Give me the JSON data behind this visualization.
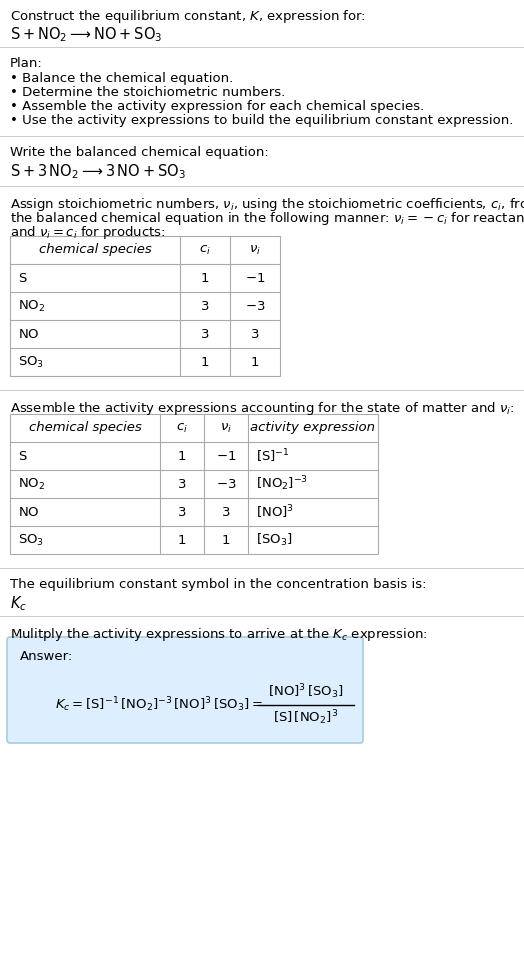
{
  "title_line1": "Construct the equilibrium constant, $K$, expression for:",
  "title_line2": "$\\mathrm{S} + \\mathrm{NO}_2 \\longrightarrow \\mathrm{NO} + \\mathrm{SO}_3$",
  "plan_header": "Plan:",
  "plan_items": [
    "• Balance the chemical equation.",
    "• Determine the stoichiometric numbers.",
    "• Assemble the activity expression for each chemical species.",
    "• Use the activity expressions to build the equilibrium constant expression."
  ],
  "balanced_header": "Write the balanced chemical equation:",
  "balanced_eq": "$\\mathrm{S} + 3\\,\\mathrm{NO}_2 \\longrightarrow 3\\,\\mathrm{NO} + \\mathrm{SO}_3$",
  "stoich_text1": "Assign stoichiometric numbers, $\\nu_i$, using the stoichiometric coefficients, $c_i$, from",
  "stoich_text2": "the balanced chemical equation in the following manner: $\\nu_i = -c_i$ for reactants",
  "stoich_text3": "and $\\nu_i = c_i$ for products:",
  "table1_headers": [
    "chemical species",
    "$c_i$",
    "$\\nu_i$"
  ],
  "table1_rows": [
    [
      "$\\mathrm{S}$",
      "1",
      "$-1$"
    ],
    [
      "$\\mathrm{NO}_2$",
      "3",
      "$-3$"
    ],
    [
      "$\\mathrm{NO}$",
      "3",
      "$3$"
    ],
    [
      "$\\mathrm{SO}_3$",
      "1",
      "$1$"
    ]
  ],
  "assemble_header": "Assemble the activity expressions accounting for the state of matter and $\\nu_i$:",
  "table2_headers": [
    "chemical species",
    "$c_i$",
    "$\\nu_i$",
    "activity expression"
  ],
  "table2_rows": [
    [
      "$\\mathrm{S}$",
      "1",
      "$-1$",
      "$[\\mathrm{S}]^{-1}$"
    ],
    [
      "$\\mathrm{NO}_2$",
      "3",
      "$-3$",
      "$[\\mathrm{NO}_2]^{-3}$"
    ],
    [
      "$\\mathrm{NO}$",
      "3",
      "$3$",
      "$[\\mathrm{NO}]^{3}$"
    ],
    [
      "$\\mathrm{SO}_3$",
      "1",
      "$1$",
      "$[\\mathrm{SO}_3]$"
    ]
  ],
  "kc_text": "The equilibrium constant symbol in the concentration basis is:",
  "kc_symbol": "$K_c$",
  "multiply_text": "Mulitply the activity expressions to arrive at the $K_c$ expression:",
  "answer_label": "Answer:",
  "kc_expr_left": "$K_c = [\\mathrm{S}]^{-1}\\,[\\mathrm{NO}_2]^{-3}\\,[\\mathrm{NO}]^{3}\\,[\\mathrm{SO}_3] = $",
  "kc_expr_num": "$[\\mathrm{NO}]^3\\,[\\mathrm{SO}_3]$",
  "kc_expr_den": "$[\\mathrm{S}]\\,[\\mathrm{NO}_2]^{3}$",
  "bg_color": "#ffffff",
  "answer_bg": "#ddeeff",
  "answer_border": "#aaccdd",
  "text_color": "#000000",
  "table_border": "#aaaaaa",
  "divider_color": "#cccccc",
  "font_size": 9.5
}
